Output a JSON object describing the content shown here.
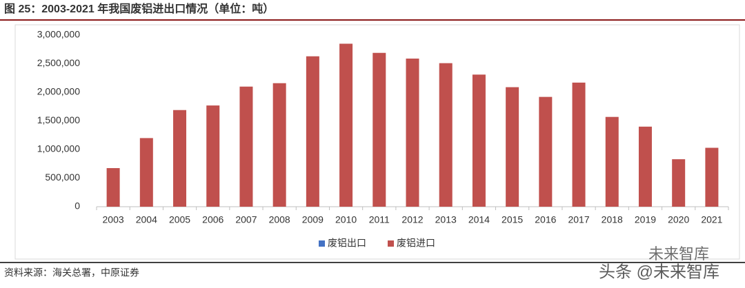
{
  "chart_data": {
    "type": "bar",
    "title": "图 25：2003-2021 年我国废铝进出口情况（单位：吨）",
    "categories": [
      "2003",
      "2004",
      "2005",
      "2006",
      "2007",
      "2008",
      "2009",
      "2010",
      "2011",
      "2012",
      "2013",
      "2014",
      "2015",
      "2016",
      "2017",
      "2018",
      "2019",
      "2020",
      "2021"
    ],
    "series": [
      {
        "name": "废铝出口",
        "color": "#4472c4",
        "values": [
          0,
          0,
          0,
          0,
          0,
          0,
          0,
          0,
          0,
          0,
          0,
          0,
          0,
          0,
          0,
          0,
          0,
          0,
          0
        ]
      },
      {
        "name": "废铝进口",
        "color": "#c0504d",
        "values": [
          675000,
          1200000,
          1690000,
          1770000,
          2100000,
          2160000,
          2630000,
          2850000,
          2690000,
          2590000,
          2510000,
          2310000,
          2090000,
          1920000,
          2170000,
          1570000,
          1400000,
          830000,
          1030000
        ]
      }
    ],
    "ylim": [
      0,
      3000000
    ],
    "yticks": [
      0,
      {
        "value": 500000,
        "label": "500,000"
      },
      {
        "value": 1000000,
        "label": "1,000,000"
      },
      {
        "value": 1500000,
        "label": "1,500,000"
      },
      {
        "value": 2000000,
        "label": "2,000,000"
      },
      {
        "value": 2500000,
        "label": "2,500,000"
      },
      {
        "value": 3000000,
        "label": "3,000,000"
      }
    ],
    "grid": false,
    "legend": "bottom",
    "source": "资料来源：海关总署，中原证券",
    "watermark": [
      "未来智库",
      "头条 @未来智库"
    ]
  }
}
